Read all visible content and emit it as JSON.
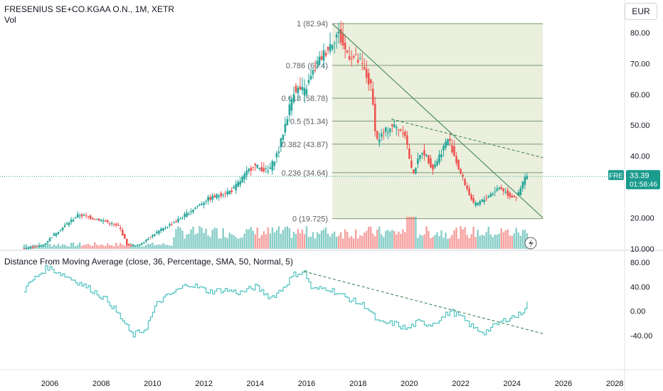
{
  "header": {
    "title": "FRESENIUS SE+CO.KGAA O.N., 1M, XETR",
    "volume_label": "Vol",
    "currency": "EUR"
  },
  "indicator": {
    "label": "Distance From Moving Average (close, 36, Percentage, SMA, 50, Normal, 5)"
  },
  "price_badge": {
    "symbol": "FRE",
    "price": "33.39",
    "countdown": "01:58:46"
  },
  "colors": {
    "up": "#26a69a",
    "down": "#ef5350",
    "fib_fill": "#e4e9d3",
    "fib_line": "#7a9a6e",
    "trend_line": "#2e7d4a",
    "indicator_line": "#4fc3c0",
    "badge": "#1a9b8d"
  },
  "chart_data": [
    {
      "type": "candlestick",
      "title": "FRESENIUS SE+CO.KGAA O.N., 1M, XETR",
      "y_axis_ticks": [
        "80.00",
        "70.00",
        "60.00",
        "50.00",
        "40.00",
        "20.000",
        "10.000"
      ],
      "y_axis_values": [
        80,
        70,
        60,
        50,
        40,
        20,
        10
      ],
      "x_axis_ticks": [
        "2006",
        "2008",
        "2010",
        "2012",
        "2014",
        "2016",
        "2018",
        "2020",
        "2022",
        "2024",
        "2026",
        "2028"
      ],
      "last_price": 33.39,
      "key_points": [
        {
          "x": 2005.0,
          "y": 10
        },
        {
          "x": 2005.8,
          "y": 11
        },
        {
          "x": 2006.3,
          "y": 15
        },
        {
          "x": 2007.2,
          "y": 21
        },
        {
          "x": 2008.2,
          "y": 19
        },
        {
          "x": 2008.8,
          "y": 17
        },
        {
          "x": 2009.1,
          "y": 11
        },
        {
          "x": 2009.5,
          "y": 11
        },
        {
          "x": 2010.2,
          "y": 15
        },
        {
          "x": 2011.2,
          "y": 20
        },
        {
          "x": 2012.2,
          "y": 26
        },
        {
          "x": 2013.2,
          "y": 29
        },
        {
          "x": 2014.0,
          "y": 37
        },
        {
          "x": 2014.6,
          "y": 35
        },
        {
          "x": 2015.0,
          "y": 42
        },
        {
          "x": 2015.6,
          "y": 62
        },
        {
          "x": 2016.0,
          "y": 61
        },
        {
          "x": 2016.5,
          "y": 70
        },
        {
          "x": 2017.3,
          "y": 80
        },
        {
          "x": 2017.6,
          "y": 74
        },
        {
          "x": 2018.2,
          "y": 70
        },
        {
          "x": 2018.6,
          "y": 62
        },
        {
          "x": 2018.8,
          "y": 45
        },
        {
          "x": 2019.4,
          "y": 50
        },
        {
          "x": 2019.9,
          "y": 48
        },
        {
          "x": 2020.2,
          "y": 34
        },
        {
          "x": 2020.6,
          "y": 42
        },
        {
          "x": 2021.0,
          "y": 36
        },
        {
          "x": 2021.6,
          "y": 46
        },
        {
          "x": 2022.0,
          "y": 36
        },
        {
          "x": 2022.6,
          "y": 24
        },
        {
          "x": 2023.0,
          "y": 26
        },
        {
          "x": 2023.6,
          "y": 30
        },
        {
          "x": 2024.0,
          "y": 27
        },
        {
          "x": 2024.3,
          "y": 27
        },
        {
          "x": 2024.6,
          "y": 33.4
        }
      ],
      "fibonacci": {
        "levels": [
          {
            "ratio": "1",
            "price": "82.94",
            "value": 82.94
          },
          {
            "ratio": "0.786",
            "price": "69.4",
            "value": 69.4
          },
          {
            "ratio": "0.618",
            "price": "58.78",
            "value": 58.78
          },
          {
            "ratio": "0.5",
            "price": "51.34",
            "value": 51.34
          },
          {
            "ratio": "0.382",
            "price": "43.87",
            "value": 43.87
          },
          {
            "ratio": "0.236",
            "price": "34.64",
            "value": 34.64
          },
          {
            "ratio": "0",
            "price": "19.725",
            "value": 19.725
          }
        ],
        "x_start": 2017.0,
        "x_end": 2025.2,
        "labels": [
          "1 (82.94)",
          "0.786 (69.4)",
          "0.618 (58.78)",
          "0.5 (51.34)",
          "0.382 (43.87)",
          "0.236 (34.64)",
          "0 (19.725)"
        ]
      },
      "trend_lines": [
        {
          "style": "solid",
          "from": {
            "x": 2017.0,
            "y": 82.9
          },
          "to": {
            "x": 2025.2,
            "y": 20.0
          }
        },
        {
          "style": "dashed",
          "from": {
            "x": 2019.3,
            "y": 52.0
          },
          "to": {
            "x": 2025.2,
            "y": 39.5
          }
        }
      ]
    },
    {
      "type": "line",
      "title": "Distance From Moving Average (close, 36, Percentage, SMA, 50, Normal, 5)",
      "y_axis_ticks": [
        "80.00",
        "40.00",
        "0.00",
        "-40.00"
      ],
      "y_axis_values": [
        80,
        40,
        0,
        -40
      ],
      "key_points": [
        {
          "x": 2005.0,
          "y": 35
        },
        {
          "x": 2005.3,
          "y": 50
        },
        {
          "x": 2005.9,
          "y": 72
        },
        {
          "x": 2006.5,
          "y": 60
        },
        {
          "x": 2007.2,
          "y": 45
        },
        {
          "x": 2007.8,
          "y": 30
        },
        {
          "x": 2008.3,
          "y": 15
        },
        {
          "x": 2008.9,
          "y": -20
        },
        {
          "x": 2009.2,
          "y": -40
        },
        {
          "x": 2009.7,
          "y": -30
        },
        {
          "x": 2010.2,
          "y": 15
        },
        {
          "x": 2010.8,
          "y": 30
        },
        {
          "x": 2011.4,
          "y": 45
        },
        {
          "x": 2012.2,
          "y": 32
        },
        {
          "x": 2012.8,
          "y": 35
        },
        {
          "x": 2013.4,
          "y": 30
        },
        {
          "x": 2014.0,
          "y": 40
        },
        {
          "x": 2014.6,
          "y": 22
        },
        {
          "x": 2015.0,
          "y": 35
        },
        {
          "x": 2015.5,
          "y": 60
        },
        {
          "x": 2015.9,
          "y": 65
        },
        {
          "x": 2016.2,
          "y": 35
        },
        {
          "x": 2016.8,
          "y": 38
        },
        {
          "x": 2017.4,
          "y": 25
        },
        {
          "x": 2017.9,
          "y": 15
        },
        {
          "x": 2018.3,
          "y": 8
        },
        {
          "x": 2018.8,
          "y": -20
        },
        {
          "x": 2019.4,
          "y": -20
        },
        {
          "x": 2019.9,
          "y": -30
        },
        {
          "x": 2020.3,
          "y": -18
        },
        {
          "x": 2020.8,
          "y": -22
        },
        {
          "x": 2021.3,
          "y": -10
        },
        {
          "x": 2021.6,
          "y": 0
        },
        {
          "x": 2022.0,
          "y": -10
        },
        {
          "x": 2022.5,
          "y": -28
        },
        {
          "x": 2022.9,
          "y": -35
        },
        {
          "x": 2023.4,
          "y": -22
        },
        {
          "x": 2023.9,
          "y": -10
        },
        {
          "x": 2024.2,
          "y": -8
        },
        {
          "x": 2024.4,
          "y": 0
        },
        {
          "x": 2024.6,
          "y": 14
        }
      ],
      "trend_lines": [
        {
          "style": "dashed",
          "from": {
            "x": 2015.9,
            "y": 65
          },
          "to": {
            "x": 2025.2,
            "y": -37
          }
        }
      ]
    }
  ]
}
